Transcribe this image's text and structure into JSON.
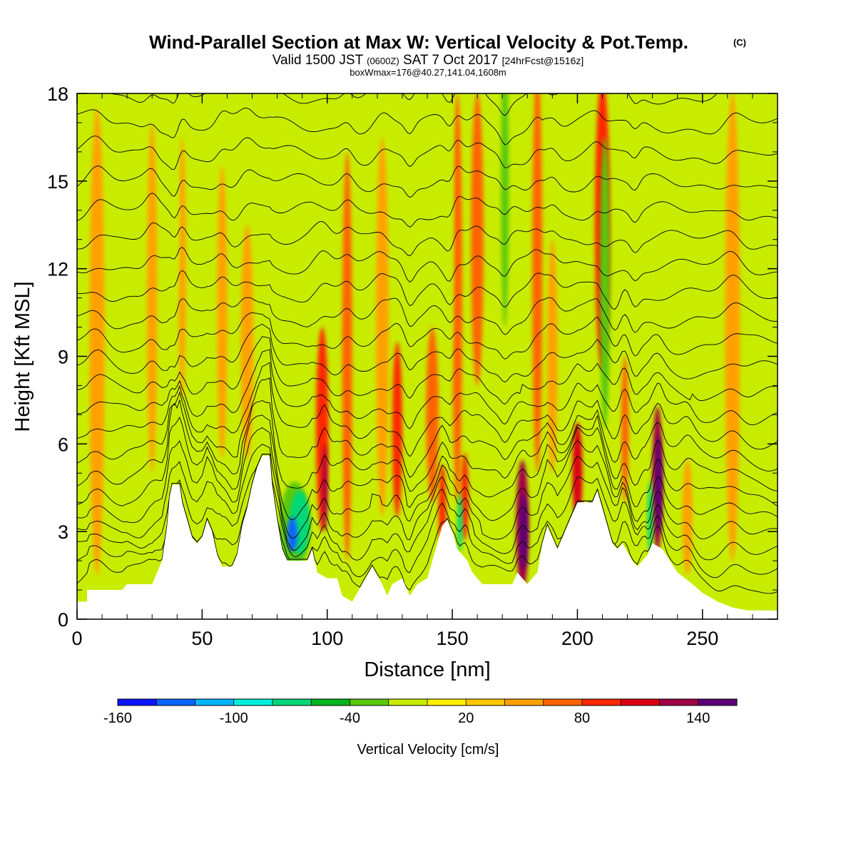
{
  "chart_data": {
    "type": "heatmap",
    "title": "Wind-Parallel Section at Max W: Vertical Velocity & Pot.Temp.",
    "title_mark": "(C)",
    "subtitle": {
      "part1": "Valid 1500 JST",
      "part2": "(0600Z)",
      "part3": "SAT 7 Oct 2017",
      "part4": "[24hrFcst@1516z]"
    },
    "subtitle2": "boxWmax=176@40.27,141.04,1608m",
    "xlabel": "Distance [nm]",
    "ylabel": "Height [Kft MSL]",
    "xlim": [
      0,
      280
    ],
    "ylim": [
      0,
      18
    ],
    "xticks": [
      0,
      50,
      100,
      150,
      200,
      250
    ],
    "yticks": [
      0,
      3,
      6,
      9,
      12,
      15,
      18
    ],
    "xtick_labels": [
      "0",
      "50",
      "100",
      "150",
      "200",
      "250"
    ],
    "ytick_labels": [
      "0",
      "3",
      "6",
      "9",
      "12",
      "15",
      "18"
    ],
    "colorbar": {
      "title": "Vertical Velocity [cm/s]",
      "colors": [
        "#0a14ff",
        "#0a64ff",
        "#00b4ff",
        "#00f0dc",
        "#00d878",
        "#00b41e",
        "#5ac80a",
        "#c8ec00",
        "#fff000",
        "#ffc800",
        "#ffa000",
        "#ff6400",
        "#ff2800",
        "#dc0014",
        "#a00046",
        "#5a0078"
      ],
      "labels": [
        {
          "value": -160,
          "text": "-160"
        },
        {
          "value": -100,
          "text": "-100"
        },
        {
          "value": -40,
          "text": "-40"
        },
        {
          "value": 20,
          "text": "20"
        },
        {
          "value": 80,
          "text": "80"
        },
        {
          "value": 140,
          "text": "140"
        }
      ]
    },
    "terrain": [
      [
        0,
        0.6
      ],
      [
        4,
        0.6
      ],
      [
        4,
        1.0
      ],
      [
        18,
        1.0
      ],
      [
        20,
        1.2
      ],
      [
        30,
        1.2
      ],
      [
        32,
        1.6
      ],
      [
        34,
        2.0
      ],
      [
        36,
        3.2
      ],
      [
        37,
        4.2
      ],
      [
        38,
        4.6
      ],
      [
        41,
        4.6
      ],
      [
        42,
        4.0
      ],
      [
        44,
        3.4
      ],
      [
        46,
        2.8
      ],
      [
        48,
        2.6
      ],
      [
        50,
        2.8
      ],
      [
        52,
        3.4
      ],
      [
        54,
        3.0
      ],
      [
        56,
        2.2
      ],
      [
        58,
        1.8
      ],
      [
        62,
        1.8
      ],
      [
        64,
        2.2
      ],
      [
        66,
        3.2
      ],
      [
        68,
        3.8
      ],
      [
        70,
        4.6
      ],
      [
        72,
        5.2
      ],
      [
        74,
        5.6
      ],
      [
        77,
        5.6
      ],
      [
        78,
        4.6
      ],
      [
        80,
        3.4
      ],
      [
        82,
        2.4
      ],
      [
        84,
        2.0
      ],
      [
        92,
        2.0
      ],
      [
        94,
        2.4
      ],
      [
        96,
        1.6
      ],
      [
        100,
        1.4
      ],
      [
        104,
        1.4
      ],
      [
        106,
        0.8
      ],
      [
        110,
        0.6
      ],
      [
        114,
        1.2
      ],
      [
        118,
        1.8
      ],
      [
        122,
        1.2
      ],
      [
        124,
        0.8
      ],
      [
        126,
        1.2
      ],
      [
        130,
        1.4
      ],
      [
        133,
        0.8
      ],
      [
        136,
        1.2
      ],
      [
        140,
        1.4
      ],
      [
        142,
        2.0
      ],
      [
        144,
        2.6
      ],
      [
        146,
        3.2
      ],
      [
        148,
        3.4
      ],
      [
        150,
        3.0
      ],
      [
        152,
        2.4
      ],
      [
        154,
        2.2
      ],
      [
        156,
        2.0
      ],
      [
        158,
        1.6
      ],
      [
        162,
        1.2
      ],
      [
        174,
        1.2
      ],
      [
        176,
        1.6
      ],
      [
        180,
        1.2
      ],
      [
        184,
        1.6
      ],
      [
        186,
        2.6
      ],
      [
        188,
        3.2
      ],
      [
        190,
        2.8
      ],
      [
        192,
        2.4
      ],
      [
        194,
        2.8
      ],
      [
        196,
        3.2
      ],
      [
        198,
        3.6
      ],
      [
        200,
        4.0
      ],
      [
        206,
        4.0
      ],
      [
        208,
        4.4
      ],
      [
        210,
        3.8
      ],
      [
        212,
        3.2
      ],
      [
        214,
        2.6
      ],
      [
        216,
        2.4
      ],
      [
        218,
        2.6
      ],
      [
        222,
        2.0
      ],
      [
        224,
        1.8
      ],
      [
        228,
        2.2
      ],
      [
        230,
        2.6
      ],
      [
        234,
        2.4
      ],
      [
        240,
        1.6
      ],
      [
        246,
        1.2
      ],
      [
        250,
        0.9
      ],
      [
        256,
        0.6
      ],
      [
        262,
        0.4
      ],
      [
        268,
        0.3
      ],
      [
        280,
        0.3
      ]
    ],
    "updraft_bands": [
      {
        "x": 8,
        "y": 9.5,
        "w": 6,
        "h": 16,
        "v": 20
      },
      {
        "x": 30,
        "y": 11.0,
        "w": 4,
        "h": 12,
        "v": 20
      },
      {
        "x": 42,
        "y": 12.0,
        "w": 3,
        "h": 9,
        "v": 30
      },
      {
        "x": 58,
        "y": 10.5,
        "w": 4,
        "h": 10,
        "v": 20
      },
      {
        "x": 68,
        "y": 9.5,
        "w": 5,
        "h": 8,
        "v": 30
      },
      {
        "x": 98,
        "y": 6.5,
        "w": 5,
        "h": 7,
        "v": 60
      },
      {
        "x": 99,
        "y": 4.5,
        "w": 2,
        "h": 3,
        "v": 100
      },
      {
        "x": 108,
        "y": 9.0,
        "w": 4,
        "h": 14,
        "v": 40
      },
      {
        "x": 122,
        "y": 10.0,
        "w": 5,
        "h": 13,
        "v": 30
      },
      {
        "x": 128,
        "y": 6.5,
        "w": 4,
        "h": 6,
        "v": 60
      },
      {
        "x": 142,
        "y": 7.0,
        "w": 5,
        "h": 6,
        "v": 50
      },
      {
        "x": 146,
        "y": 3.8,
        "w": 3,
        "h": 3,
        "v": 70
      },
      {
        "x": 152,
        "y": 11.0,
        "w": 4,
        "h": 14,
        "v": 50
      },
      {
        "x": 155,
        "y": 4.2,
        "w": 3,
        "h": 3,
        "v": 60
      },
      {
        "x": 160,
        "y": 13.0,
        "w": 5,
        "h": 10,
        "v": 40
      },
      {
        "x": 178,
        "y": 3.2,
        "w": 5,
        "h": 4.5,
        "v": 110
      },
      {
        "x": 178.5,
        "y": 3.0,
        "w": 3,
        "h": 2.6,
        "v": 150
      },
      {
        "x": 184,
        "y": 12.0,
        "w": 4,
        "h": 14,
        "v": 40
      },
      {
        "x": 190,
        "y": 9.0,
        "w": 4,
        "h": 8,
        "v": 30
      },
      {
        "x": 200,
        "y": 5.0,
        "w": 4,
        "h": 3.5,
        "v": 80
      },
      {
        "x": 210,
        "y": 13.5,
        "w": 6,
        "h": 10,
        "v": 60
      },
      {
        "x": 219,
        "y": 6.5,
        "w": 3,
        "h": 5,
        "v": 40
      },
      {
        "x": 232,
        "y": 4.8,
        "w": 4,
        "h": 5,
        "v": 110
      },
      {
        "x": 232.5,
        "y": 4.6,
        "w": 2.6,
        "h": 3.4,
        "v": 150
      },
      {
        "x": 244,
        "y": 3.5,
        "w": 4,
        "h": 4,
        "v": 30
      },
      {
        "x": 262,
        "y": 10.0,
        "w": 6,
        "h": 16,
        "v": 20
      }
    ],
    "downdraft_bands": [
      {
        "x": 39,
        "y": 13.5,
        "w": 3,
        "h": 6,
        "v": -40
      },
      {
        "x": 65,
        "y": 3.0,
        "w": 4,
        "h": 3,
        "v": -40
      },
      {
        "x": 87,
        "y": 3.2,
        "w": 12,
        "h": 3,
        "v": -60
      },
      {
        "x": 89,
        "y": 3.3,
        "w": 8,
        "h": 2.2,
        "v": -100
      },
      {
        "x": 86,
        "y": 2.9,
        "w": 4,
        "h": 1.2,
        "v": -160
      },
      {
        "x": 118,
        "y": 2.2,
        "w": 8,
        "h": 2.0,
        "v": -40
      },
      {
        "x": 131,
        "y": 2.6,
        "w": 3,
        "h": 2.0,
        "v": -40
      },
      {
        "x": 133,
        "y": 13.0,
        "w": 3,
        "h": 10,
        "v": -40
      },
      {
        "x": 149,
        "y": 13.0,
        "w": 3,
        "h": 10,
        "v": -40
      },
      {
        "x": 153,
        "y": 3.3,
        "w": 2,
        "h": 2.0,
        "v": -100
      },
      {
        "x": 171,
        "y": 15.0,
        "w": 3,
        "h": 10,
        "v": -60
      },
      {
        "x": 211,
        "y": 11.5,
        "w": 4,
        "h": 10,
        "v": -60
      },
      {
        "x": 215,
        "y": 5.5,
        "w": 3,
        "h": 6,
        "v": -40
      },
      {
        "x": 223,
        "y": 11.0,
        "w": 3,
        "h": 10,
        "v": -40
      },
      {
        "x": 229,
        "y": 3.5,
        "w": 2,
        "h": 2.5,
        "v": -100
      }
    ]
  }
}
